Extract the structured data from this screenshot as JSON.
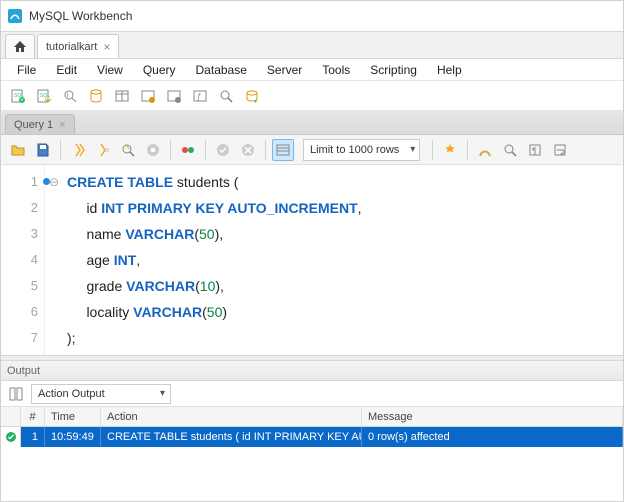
{
  "window": {
    "title": "MySQL Workbench"
  },
  "connection_tab": {
    "label": "tutorialkart"
  },
  "menu": [
    "File",
    "Edit",
    "View",
    "Query",
    "Database",
    "Server",
    "Tools",
    "Scripting",
    "Help"
  ],
  "query_tab": {
    "label": "Query 1"
  },
  "editor_toolbar": {
    "limit_label": "Limit to 1000 rows"
  },
  "code": {
    "lines": [
      {
        "n": 1,
        "marker": true,
        "fold": "⊖",
        "tokens": [
          [
            "kw",
            "CREATE TABLE"
          ],
          [
            "ident",
            " students "
          ],
          [
            "punc",
            "("
          ]
        ]
      },
      {
        "n": 2,
        "tokens": [
          [
            "ident",
            "     id "
          ],
          [
            "typ",
            "INT PRIMARY KEY AUTO_INCREMENT"
          ],
          [
            "punc",
            ","
          ]
        ]
      },
      {
        "n": 3,
        "tokens": [
          [
            "ident",
            "     name "
          ],
          [
            "typ",
            "VARCHAR"
          ],
          [
            "punc",
            "("
          ],
          [
            "num",
            "50"
          ],
          [
            "punc",
            "),"
          ]
        ]
      },
      {
        "n": 4,
        "tokens": [
          [
            "ident",
            "     age "
          ],
          [
            "typ",
            "INT"
          ],
          [
            "punc",
            ","
          ]
        ]
      },
      {
        "n": 5,
        "tokens": [
          [
            "ident",
            "     grade "
          ],
          [
            "typ",
            "VARCHAR"
          ],
          [
            "punc",
            "("
          ],
          [
            "num",
            "10"
          ],
          [
            "punc",
            "),"
          ]
        ]
      },
      {
        "n": 6,
        "tokens": [
          [
            "ident",
            "     locality "
          ],
          [
            "typ",
            "VARCHAR"
          ],
          [
            "punc",
            "("
          ],
          [
            "num",
            "50"
          ],
          [
            "punc",
            ")"
          ]
        ]
      },
      {
        "n": 7,
        "tokens": [
          [
            "punc",
            ");"
          ]
        ]
      }
    ]
  },
  "output": {
    "panel_title": "Output",
    "dropdown": "Action Output",
    "columns": {
      "idx": "#",
      "time": "Time",
      "action": "Action",
      "message": "Message"
    },
    "row": {
      "idx": "1",
      "time": "10:59:49",
      "action": "CREATE TABLE students (     id INT PRIMARY KEY AUTO_INCREMENT...",
      "message": "0 row(s) affected"
    }
  },
  "colors": {
    "selection": "#0a68c8",
    "keyword": "#1565c0",
    "number": "#0b8043"
  }
}
